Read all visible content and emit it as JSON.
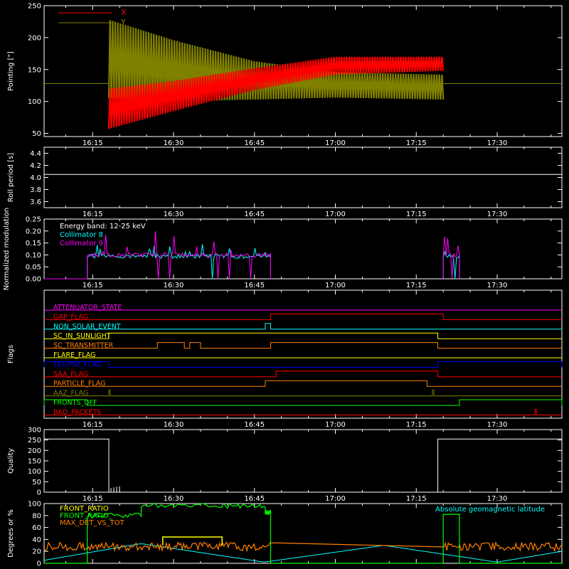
{
  "colors": {
    "background": "#000000",
    "axes": "#ffffff",
    "red": "#ff0000",
    "olive": "#808000",
    "cyan": "#00ffff",
    "magenta": "#ff00ff",
    "blue": "#0000ff",
    "green": "#00ff00",
    "yellow": "#ffff00",
    "orange": "#ff8000",
    "dark_orange": "#ff6a00"
  },
  "x_ticks": [
    "16:15",
    "16:30",
    "16:45",
    "17:00",
    "17:15",
    "17:30"
  ],
  "chart_data": [
    {
      "id": "pointing",
      "type": "line",
      "ylabel": "Pointing [\"]",
      "xlim": [
        "16:06",
        "17:42"
      ],
      "ylim": [
        45,
        250
      ],
      "yticks": [
        50,
        100,
        150,
        200,
        250
      ],
      "legend": {
        "placement": "top-left"
      },
      "series": [
        {
          "name": "X",
          "color": "#ff0000",
          "flat_value": 128,
          "oscillation_start": "16:18",
          "oscillation_end": "17:20",
          "upper_envelope": [
            [
              16.3,
              120
            ],
            [
              16.5,
              132
            ],
            [
              16.75,
              152
            ],
            [
              17.0,
              170
            ],
            [
              17.333,
              170
            ]
          ],
          "lower_envelope": [
            [
              16.3,
              57
            ],
            [
              16.5,
              85
            ],
            [
              16.75,
              118
            ],
            [
              17.0,
              142
            ],
            [
              17.333,
              148
            ]
          ]
        },
        {
          "name": "Y",
          "color": "#808000",
          "flat_value": 128,
          "oscillation_start": "16:18",
          "oscillation_end": "17:20",
          "upper_envelope": [
            [
              16.3,
              228
            ],
            [
              16.5,
              196
            ],
            [
              16.75,
              163
            ],
            [
              17.0,
              146
            ],
            [
              17.333,
              142
            ]
          ],
          "lower_envelope": [
            [
              16.3,
              105
            ],
            [
              16.5,
              100
            ],
            [
              16.75,
              103
            ],
            [
              17.0,
              106
            ],
            [
              17.333,
              103
            ]
          ]
        }
      ]
    },
    {
      "id": "roll",
      "type": "line",
      "ylabel": "Roll period [s]",
      "ylim": [
        3.5,
        4.5
      ],
      "yticks": [
        "3.6",
        "3.8",
        "4.0",
        "4.2",
        "4.4"
      ],
      "series": [
        {
          "color": "#ffffff",
          "value": 4.05
        }
      ]
    },
    {
      "id": "modulation",
      "type": "line",
      "ylabel": "Normalized modulation",
      "ylim": [
        0,
        0.25
      ],
      "yticks": [
        "0.00",
        "0.05",
        "0.10",
        "0.15",
        "0.20",
        "0.25"
      ],
      "legend_title": "Energy band: 12-25 keV",
      "series": [
        {
          "name": "Collimator 8",
          "color": "#00ffff",
          "level": 0.095,
          "spikes_max": 0.15,
          "intervals": [
            [
              "16:14",
              "16:48"
            ],
            [
              "17:20",
              "17:23"
            ]
          ]
        },
        {
          "name": "Collimator 9",
          "color": "#ff00ff",
          "level": 0.1,
          "spikes_max": 0.2,
          "intervals": [
            [
              "16:14",
              "16:48"
            ],
            [
              "17:20",
              "17:23"
            ]
          ]
        }
      ]
    },
    {
      "id": "flags",
      "type": "line",
      "ylabel": "Flags",
      "flags": [
        {
          "name": "ATTENUATOR_STATE",
          "color": "#ff00ff",
          "on": []
        },
        {
          "name": "GAP_FLAG",
          "color": "#ff0000",
          "on": [
            [
              "16:48",
              "17:20"
            ]
          ]
        },
        {
          "name": "NON_SOLAR_EVENT",
          "color": "#00ffff",
          "on": [
            [
              "16:47",
              "16:48"
            ]
          ]
        },
        {
          "name": "SC_IN_SUNLIGHT",
          "color": "#ffff00",
          "on": [
            [
              "16:18",
              "17:19"
            ]
          ]
        },
        {
          "name": "SC_TRANSMITTER",
          "color": "#ff8000",
          "on": [
            [
              "16:27",
              "16:32"
            ],
            [
              "16:33",
              "16:35"
            ],
            [
              "16:48",
              "17:19"
            ]
          ]
        },
        {
          "name": "FLARE_FLAG",
          "color": "#ffff00",
          "on": []
        },
        {
          "name": "ECLIPSE_FLAG",
          "color": "#0000ff",
          "on": [
            [
              "16:06",
              "16:18"
            ],
            [
              "17:19",
              "17:42"
            ]
          ]
        },
        {
          "name": "SAA_FLAG",
          "color": "#ff0000",
          "on": [
            [
              "16:49",
              "17:19"
            ]
          ]
        },
        {
          "name": "PARTICLE_FLAG",
          "color": "#ff8000",
          "on": [
            [
              "16:47",
              "17:17"
            ]
          ]
        },
        {
          "name": "AAZ_FLAG",
          "color": "#808000",
          "on": [
            [
              "16:18",
              "16:18"
            ],
            [
              "17:18",
              "17:18"
            ]
          ]
        },
        {
          "name": "FRONTS_OFF",
          "color": "#00ff00",
          "on": [
            [
              "16:06",
              "16:14"
            ],
            [
              "17:23",
              "17:42"
            ]
          ]
        },
        {
          "name": "BAD_PACKETS",
          "color": "#ff0000",
          "on": [
            [
              "17:37",
              "17:37"
            ]
          ]
        }
      ]
    },
    {
      "id": "quality",
      "type": "line",
      "ylabel": "Quality",
      "ylim": [
        0,
        300
      ],
      "yticks": [
        0,
        50,
        100,
        150,
        200,
        250,
        300
      ],
      "series": [
        {
          "color": "#ffffff",
          "high": 255,
          "segments": [
            [
              "16:06",
              "16:18"
            ],
            [
              "17:19",
              "17:42"
            ]
          ]
        }
      ]
    },
    {
      "id": "ratios",
      "type": "line",
      "ylabel": "Degrees or %",
      "ylim": [
        0,
        100
      ],
      "yticks": [
        0,
        20,
        40,
        60,
        80,
        100
      ],
      "annotation": "Absolute geomagnetic latitude",
      "series": [
        {
          "name": "FRONT_RATIO",
          "color": "#ffff00",
          "level": 44,
          "interval": [
            "16:28",
            "16:39"
          ]
        },
        {
          "name": "FRONT_RATIO_",
          "color": "#00ff00",
          "levels": [
            80,
            97,
            96,
            85
          ],
          "breaks": [
            "16:14",
            "16:24",
            "16:39",
            "16:47"
          ],
          "interval2": [
            "17:20",
            "17:23"
          ],
          "level2": 82
        },
        {
          "name": "MAX_DET_VS_TOT",
          "color": "#ff8000",
          "level": 28
        },
        {
          "name": "Absolute geomagnetic latitude",
          "color": "#00ffff",
          "points": [
            [
              16.1,
              5
            ],
            [
              16.4,
              33
            ],
            [
              16.78,
              2
            ],
            [
              17.15,
              30
            ],
            [
              17.5,
              2
            ],
            [
              17.7,
              20
            ]
          ]
        }
      ]
    }
  ]
}
